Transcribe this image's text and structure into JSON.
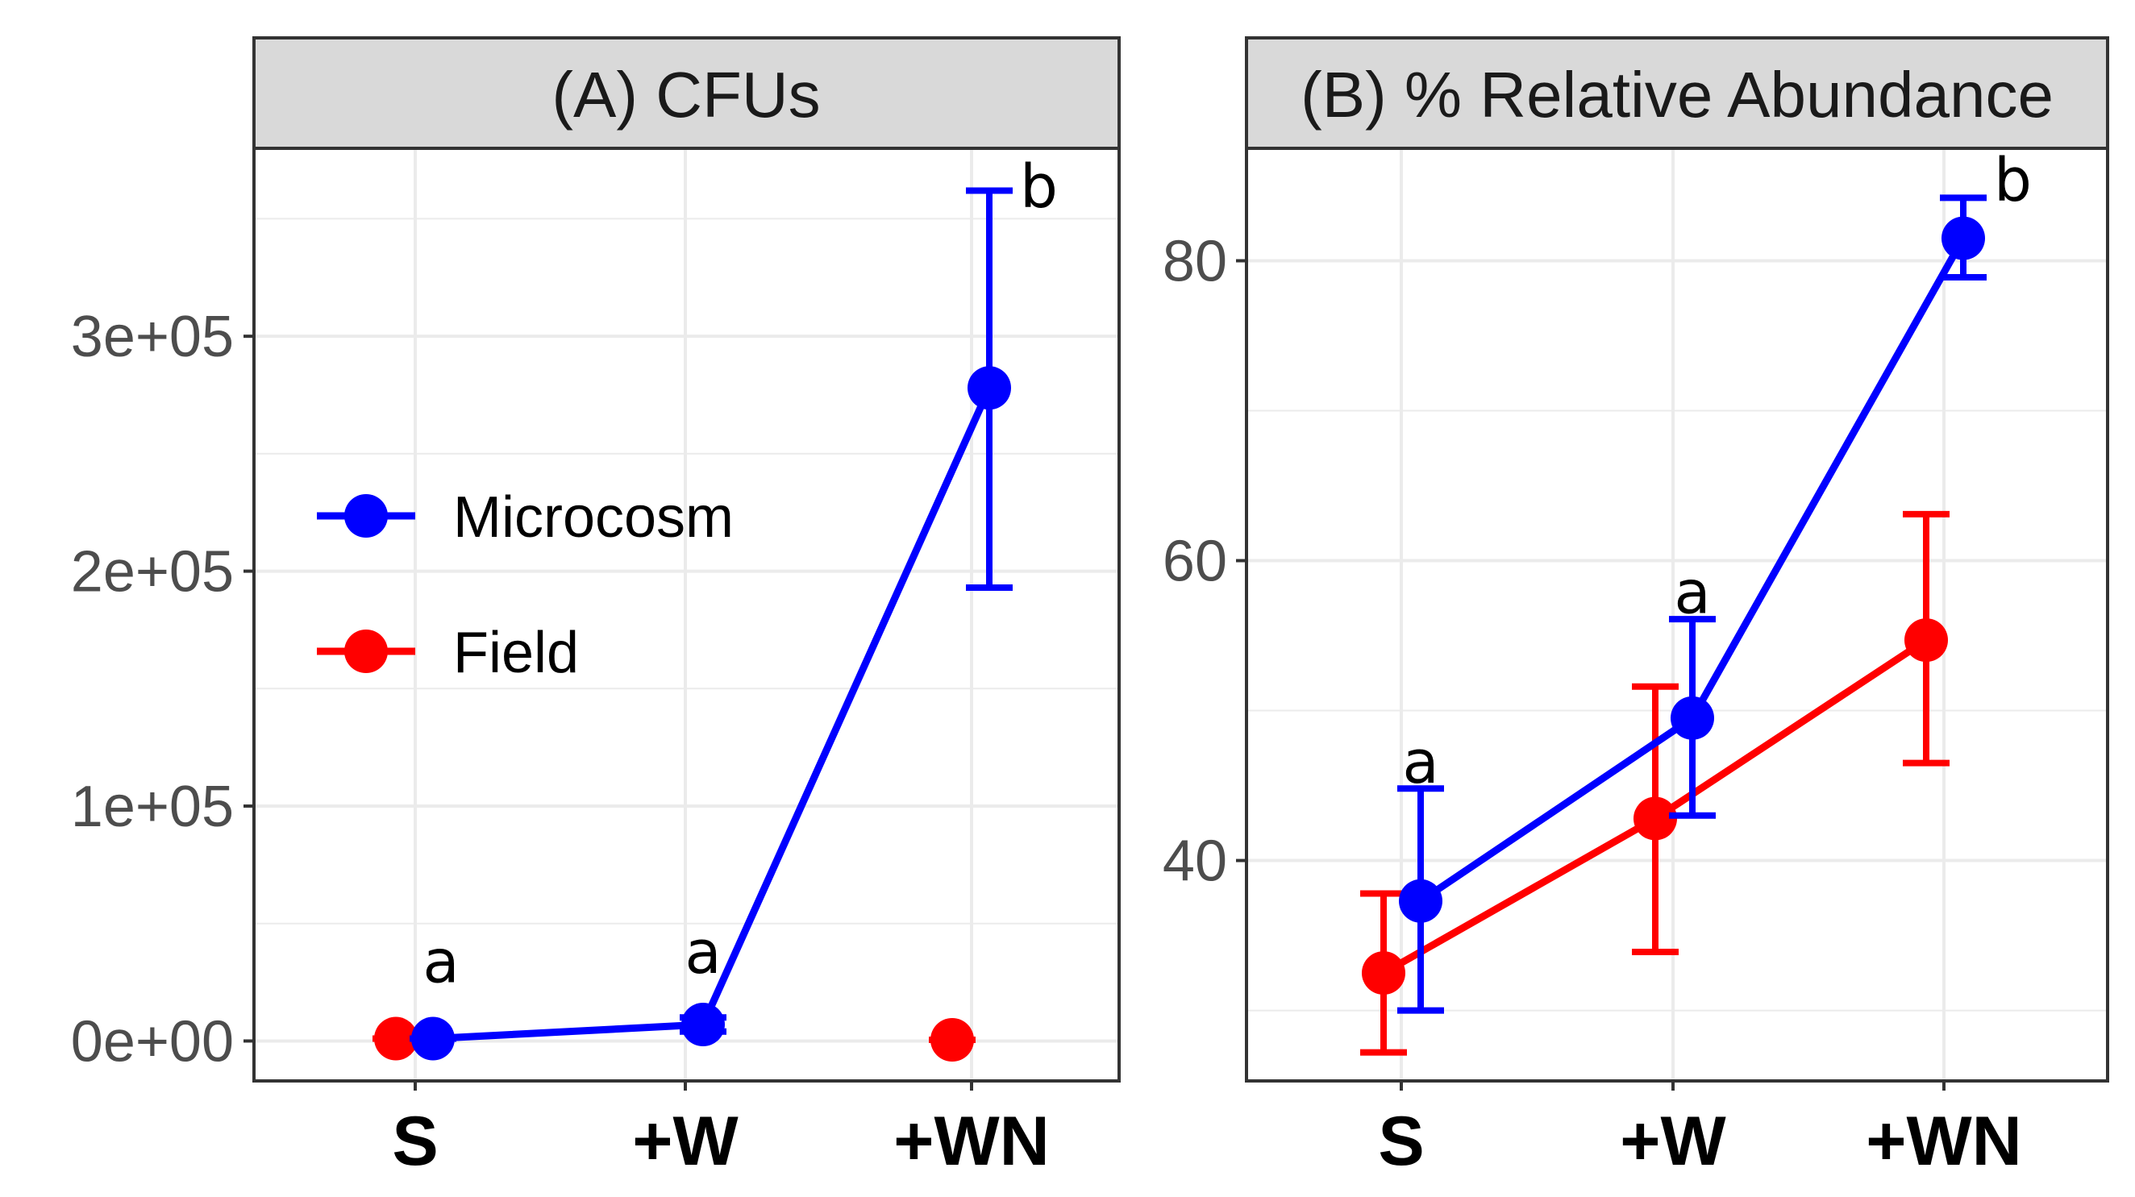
{
  "colors": {
    "microcosm": "#0000ff",
    "field": "#ff0000",
    "strip_bg": "#d9d9d9",
    "grid": "#ebebeb",
    "border": "#333333"
  },
  "legend": {
    "items": [
      {
        "label": "Microcosm",
        "color": "#0000ff"
      },
      {
        "label": "Field",
        "color": "#ff0000"
      }
    ]
  },
  "chart_data": [
    {
      "type": "line",
      "title": "(A) CFUs",
      "xlabel": "",
      "ylabel": "",
      "categories": [
        "S",
        "+W",
        "+WN"
      ],
      "yticks": [
        0,
        100000,
        200000,
        300000
      ],
      "ytick_labels": [
        "0e+00",
        "1e+05",
        "2e+05",
        "3e+05"
      ],
      "ylim": [
        -17000,
        380000
      ],
      "series": [
        {
          "name": "Microcosm",
          "color": "#0000ff",
          "connected": true,
          "values": [
            1000,
            7000,
            278000
          ],
          "lower": [
            1000,
            4000,
            193000
          ],
          "upper": [
            1000,
            10000,
            362000
          ]
        },
        {
          "name": "Field",
          "color": "#ff0000",
          "connected": false,
          "values": [
            1000,
            null,
            500
          ],
          "lower": [
            1000,
            null,
            500
          ],
          "upper": [
            1000,
            null,
            500
          ]
        }
      ],
      "significance": [
        {
          "category": "S",
          "series": "Microcosm",
          "label": "a",
          "y": 25000
        },
        {
          "category": "+W",
          "series": "Microcosm",
          "label": "a",
          "y": 29000
        },
        {
          "category": "+WN",
          "series": "Microcosm",
          "label": "b",
          "y": 355000
        }
      ]
    },
    {
      "type": "line",
      "title": "(B) % Relative Abundance",
      "xlabel": "",
      "ylabel": "",
      "categories": [
        "S",
        "+W",
        "+WN"
      ],
      "yticks": [
        40,
        60,
        80
      ],
      "ytick_labels": [
        "40",
        "60",
        "80"
      ],
      "ylim": [
        25.3,
        87.5
      ],
      "series": [
        {
          "name": "Microcosm",
          "color": "#0000ff",
          "connected": true,
          "values": [
            37.3,
            49.5,
            81.5
          ],
          "lower": [
            30.0,
            43.0,
            78.9
          ],
          "upper": [
            44.8,
            56.1,
            84.2
          ]
        },
        {
          "name": "Field",
          "color": "#ff0000",
          "connected": true,
          "values": [
            32.5,
            42.8,
            54.7
          ],
          "lower": [
            27.2,
            33.9,
            46.5
          ],
          "upper": [
            37.8,
            51.6,
            63.1
          ]
        }
      ],
      "significance": [
        {
          "category": "S",
          "series": "Microcosm",
          "label": "a",
          "y": 45.2
        },
        {
          "category": "+W",
          "series": "Microcosm",
          "label": "a",
          "y": 56.5
        },
        {
          "category": "+WN",
          "series": "Microcosm",
          "label": "b",
          "y": 84.0
        }
      ]
    }
  ]
}
